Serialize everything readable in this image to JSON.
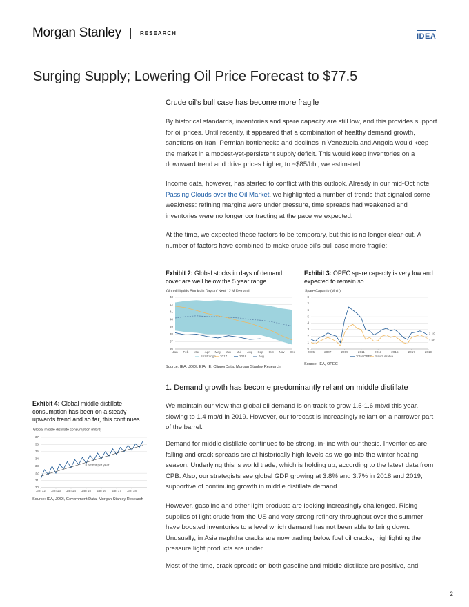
{
  "header": {
    "brand": "Morgan Stanley",
    "section": "RESEARCH",
    "tag": "IDEA"
  },
  "title": "Surging Supply; Lowering Oil Price Forecast to $77.5",
  "intro": {
    "heading": "Crude oil's bull case has become more fragile",
    "p1": "By historical standards, inventories and spare capacity are still low, and this provides support for oil prices. Until recently, it appeared that a combination of healthy demand growth, sanctions on Iran, Permian bottlenecks and declines in Venezuela and Angola would keep the market in a modest-yet-persistent supply deficit. This would keep inventories on a downward trend and drive prices higher, to ~$85/bbl, we estimated.",
    "p2": {
      "before": "Income data, however, has started to conflict with this outlook. Already in our mid-Oct note ",
      "link": "Passing Clouds over the Oil Market",
      "after": ", we highlighted a number of trends that signaled some weakness: refining margins were under pressure, time spreads had weakened and inventories were no longer contracting at the pace we expected."
    },
    "p3": "At the time, we expected these factors to be temporary, but this is no longer clear-cut. A number of factors have combined to make crude oil's bull case more fragile:"
  },
  "section": {
    "heading": "1. Demand growth has become predominantly reliant on middle distillate",
    "paragraphs": [
      "We maintain our view that global oil demand is on track to grow 1.5-1.6 mb/d this year, slowing to 1.4 mb/d in 2019. However, our forecast is increasingly reliant on a narrower part of the barrel.",
      "Demand for middle distillate continues to be strong, in-line with our thesis. Inventories are falling and crack spreads are at historically high levels as we go into the winter heating season. Underlying this is world trade, which is holding up, according to the latest data from CPB. Also, our strategists see global GDP growing at 3.8% and 3.7% in 2018 and 2019, supportive of continuing growth in middle distillate demand.",
      "However, gasoline and other light products are looking increasingly challenged. Rising supplies of light crude from the US and very strong refinery throughput over the summer have boosted inventories to a level which demand has not been able to bring down. Unusually, in Asia naphtha cracks are now trading below fuel oil cracks, highlighting the pressure light products are under.",
      "Most of the time, crack spreads on both gasoline and middle distillate are positive, and"
    ]
  },
  "page_number": "2",
  "chart_data": [
    {
      "type": "line",
      "exhibit": "Exhibit 2:",
      "title": "Global stocks in days of demand cover are well below the 5 year range",
      "subtitle": "Global Liquids Stocks in Days of Next 12 M Demand",
      "source": "Source: IEA, JODI, EIA, IE, ClipperData, Morgan Stanley Research",
      "categories": [
        "Jan",
        "Feb",
        "Mar",
        "Apr",
        "May",
        "Jun",
        "Jul",
        "Aug",
        "Sep",
        "Oct",
        "Nov",
        "Dec"
      ],
      "ylim": [
        36,
        43
      ],
      "yticks": [
        36,
        37,
        38,
        39,
        40,
        41,
        42,
        43
      ],
      "grid": true,
      "legend": true,
      "series": [
        {
          "name": "5Yr Range",
          "color": "#9ed3de",
          "high": [
            42.3,
            42.5,
            42.6,
            42.5,
            42.6,
            42.5,
            42.3,
            42.2,
            42.0,
            41.8,
            41.5,
            41.3
          ],
          "low": [
            38.5,
            38.3,
            38.2,
            38.0,
            38.0,
            38.0,
            37.9,
            37.9,
            37.9,
            37.5,
            37.0,
            36.6
          ]
        },
        {
          "name": "2017",
          "color": "#f0b860",
          "values": [
            41.8,
            41.6,
            41.2,
            40.8,
            40.5,
            40.2,
            39.8,
            39.5,
            39.0,
            38.5,
            37.8,
            37.2
          ]
        },
        {
          "name": "2018",
          "color": "#1f5a96",
          "values": [
            38.2,
            37.9,
            38.0,
            37.7,
            37.5,
            37.8,
            37.6,
            37.3,
            37.4,
            null,
            null,
            null
          ]
        },
        {
          "name": "Avg",
          "color": "#5a7fa6",
          "dash": true,
          "values": [
            40.2,
            40.4,
            40.5,
            40.4,
            40.4,
            40.3,
            40.2,
            40.0,
            39.9,
            39.7,
            39.4,
            39.1
          ]
        }
      ]
    },
    {
      "type": "line",
      "exhibit": "Exhibit 3:",
      "title": "OPEC spare capacity is very low and expected to remain so...",
      "subtitle": "Spare Capacity (Mb/d)",
      "source": "Source: IEA, OPEC",
      "x": [
        2005,
        2005.5,
        2006,
        2006.5,
        2007,
        2007.5,
        2008,
        2008.5,
        2009,
        2009.5,
        2010,
        2010.5,
        2011,
        2011.5,
        2012,
        2012.5,
        2013,
        2013.5,
        2014,
        2014.5,
        2015,
        2015.5,
        2016,
        2016.5,
        2017,
        2017.5,
        2018,
        2018.5,
        2018.9
      ],
      "xlim": [
        2005,
        2019
      ],
      "xticks": [
        2005,
        2007,
        2009,
        2011,
        2013,
        2015,
        2017,
        2019
      ],
      "ylim": [
        0,
        8
      ],
      "yticks": [
        0,
        1,
        2,
        3,
        4,
        5,
        6,
        7,
        8
      ],
      "grid": true,
      "legend": true,
      "end_labels": true,
      "series": [
        {
          "name": "Total OPEC",
          "color": "#1f5a96",
          "values": [
            1.5,
            1.2,
            1.8,
            2.0,
            2.5,
            2.2,
            2.0,
            1.0,
            4.5,
            6.5,
            6.0,
            5.5,
            4.8,
            3.0,
            2.8,
            2.2,
            2.5,
            3.0,
            3.2,
            2.8,
            3.0,
            2.5,
            1.8,
            1.5,
            2.5,
            2.6,
            2.8,
            2.5,
            2.19
          ]
        },
        {
          "name": "Saudi Arabia",
          "color": "#f0b860",
          "values": [
            1.0,
            0.8,
            1.2,
            1.5,
            1.8,
            1.5,
            1.2,
            0.5,
            2.5,
            3.5,
            3.8,
            3.2,
            3.0,
            1.5,
            1.8,
            1.2,
            1.3,
            2.0,
            2.2,
            1.8,
            2.0,
            1.5,
            1.0,
            0.8,
            1.8,
            2.0,
            2.2,
            1.9,
            1.66
          ]
        }
      ]
    },
    {
      "type": "line",
      "exhibit": "Exhibit 4:",
      "title": "Global middle distillate consumption has been on a steady upwards trend and so far, this continues",
      "subtitle": "Global middle distillate consumption (mb/d)",
      "source": "Source: IEA, JODI, Government Data, Morgan Stanley Research",
      "annotation": "0.6mb/d per year",
      "x": [
        2012,
        2012.25,
        2012.5,
        2012.75,
        2013,
        2013.25,
        2013.5,
        2013.75,
        2014,
        2014.25,
        2014.5,
        2014.75,
        2015,
        2015.25,
        2015.5,
        2015.75,
        2016,
        2016.25,
        2016.5,
        2016.75,
        2017,
        2017.25,
        2017.5,
        2017.75,
        2018,
        2018.25,
        2018.5,
        2018.75
      ],
      "xlim": [
        2012,
        2019
      ],
      "xticks": [
        {
          "value": 2012,
          "label": "Jan 12"
        },
        {
          "value": 2013,
          "label": "Jan 13"
        },
        {
          "value": 2014,
          "label": "Jan 14"
        },
        {
          "value": 2015,
          "label": "Jan 15"
        },
        {
          "value": 2016,
          "label": "Jan 16"
        },
        {
          "value": 2017,
          "label": "Jan 17"
        },
        {
          "value": 2018,
          "label": "Jan 18"
        }
      ],
      "ylim": [
        30,
        37
      ],
      "yticks": [
        30,
        31,
        32,
        33,
        34,
        35,
        36,
        37
      ],
      "grid": true,
      "legend": false,
      "trend": {
        "x": [
          2012,
          2018.75
        ],
        "values": [
          31.6,
          35.9
        ],
        "color": "#222222"
      },
      "series": [
        {
          "name": "Consumption",
          "color": "#1f5a96",
          "values": [
            31.2,
            32.5,
            31.8,
            33.0,
            32.0,
            33.3,
            32.6,
            33.6,
            32.8,
            33.9,
            33.2,
            34.2,
            33.4,
            34.5,
            33.8,
            34.8,
            34.0,
            35.0,
            34.4,
            35.4,
            34.6,
            35.6,
            35.0,
            35.9,
            35.2,
            36.1,
            35.6,
            36.5
          ]
        }
      ]
    }
  ]
}
